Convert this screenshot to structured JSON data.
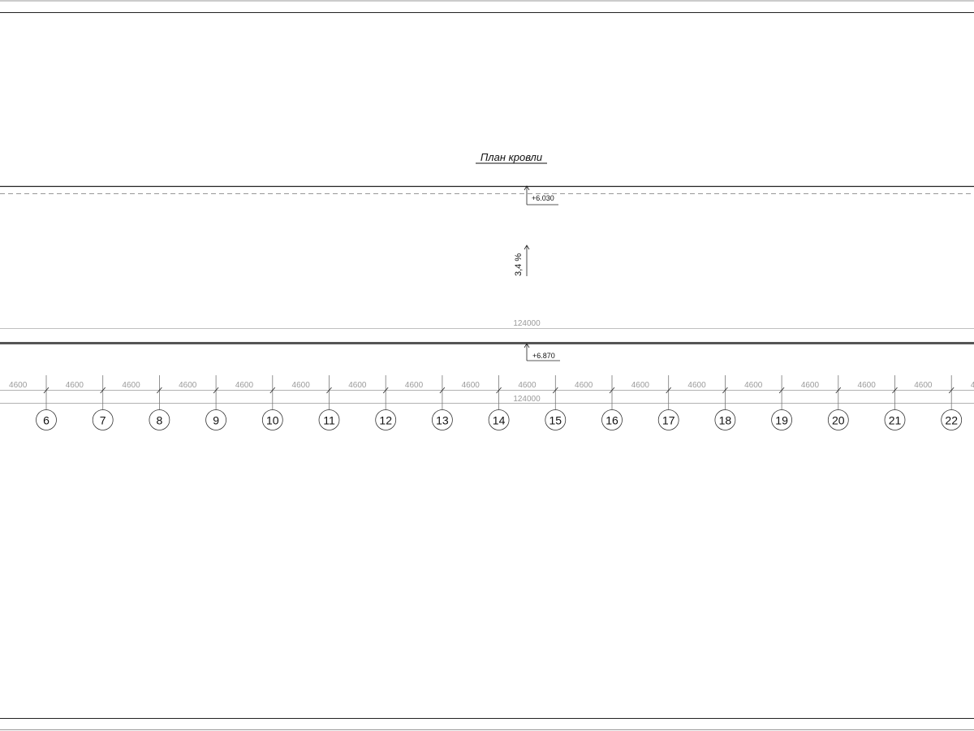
{
  "title": "План кровли",
  "elevations": {
    "top": "+6.030",
    "bottom": "+6.870"
  },
  "slope": "3,4 %",
  "overall_dimension": "124000",
  "bay_dimension": "4600",
  "axes": [
    "6",
    "7",
    "8",
    "9",
    "10",
    "11",
    "12",
    "13",
    "14",
    "15",
    "16",
    "17",
    "18",
    "19",
    "20",
    "21",
    "22"
  ],
  "colors": {
    "line": "#222222",
    "dim": "#9a9a9a"
  }
}
